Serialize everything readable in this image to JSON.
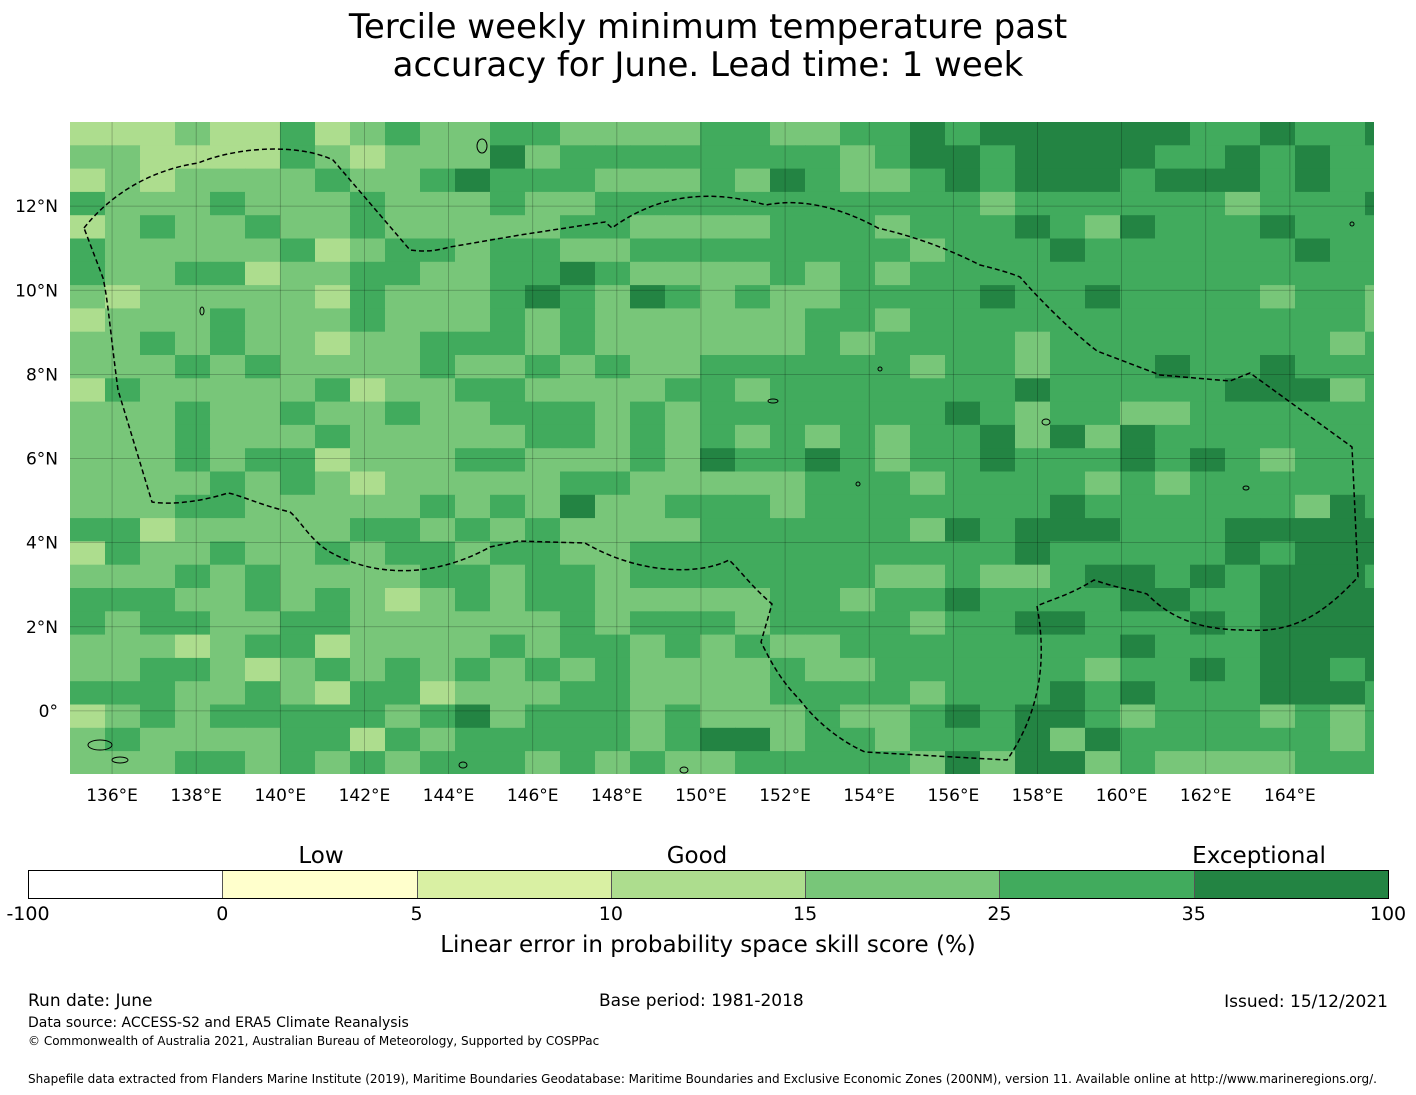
{
  "title": {
    "line1": "Tercile weekly minimum temperature past",
    "line2": "accuracy for June. Lead time: 1 week"
  },
  "map": {
    "lon_range": [
      135,
      166
    ],
    "lat_range": [
      -1.5,
      14
    ],
    "lon_ticks": [
      "136°E",
      "138°E",
      "140°E",
      "142°E",
      "144°E",
      "146°E",
      "148°E",
      "150°E",
      "152°E",
      "154°E",
      "156°E",
      "158°E",
      "160°E",
      "162°E",
      "164°E"
    ],
    "lat_ticks": [
      "12°N",
      "10°N",
      "8°N",
      "6°N",
      "4°N",
      "2°N",
      "0°"
    ],
    "grid": true,
    "cell_size_deg": 0.833,
    "dominant_class": "25 to 35",
    "higher_skill_region": "east of 153°E (35 to 100)",
    "lower_skill_region": "west of 144°E (10 to 25)",
    "boundary_style": "dashed black EEZ outline"
  },
  "colorbar": {
    "categories": [
      {
        "label": "Low",
        "at": "0 to 5"
      },
      {
        "label": "Good",
        "at": "10 to 15"
      },
      {
        "label": "Exceptional",
        "at": "35 to 100"
      }
    ],
    "bins": [
      {
        "range": "-100 to 0",
        "color": "#ffffff"
      },
      {
        "range": "0 to 5",
        "color": "#ffffcc"
      },
      {
        "range": "5 to 10",
        "color": "#d9f0a3"
      },
      {
        "range": "10 to 15",
        "color": "#addd8e"
      },
      {
        "range": "15 to 25",
        "color": "#78c679"
      },
      {
        "range": "25 to 35",
        "color": "#41ab5d"
      },
      {
        "range": "35 to 100",
        "color": "#238443"
      }
    ],
    "ticks": [
      "-100",
      "0",
      "5",
      "10",
      "15",
      "25",
      "35",
      "100"
    ],
    "label": "Linear error in probability space skill score (%)"
  },
  "footer": {
    "run_date": "Run date: June",
    "base_period": "Base period: 1981-2018",
    "issued": "Issued: 15/12/2021",
    "data_source": "Data source: ACCESS-S2 and ERA5 Climate Reanalysis",
    "copyright": "© Commonwealth of Australia 2021, Australian Bureau of Meteorology, Supported by COSPPac",
    "shapefile": "Shapefile data extracted from Flanders Marine Institute (2019), Maritime Boundaries Geodatabase: Maritime Boundaries and Exclusive Economic Zones (200NM), version 11. Available online at http://www.marineregions.org/."
  }
}
